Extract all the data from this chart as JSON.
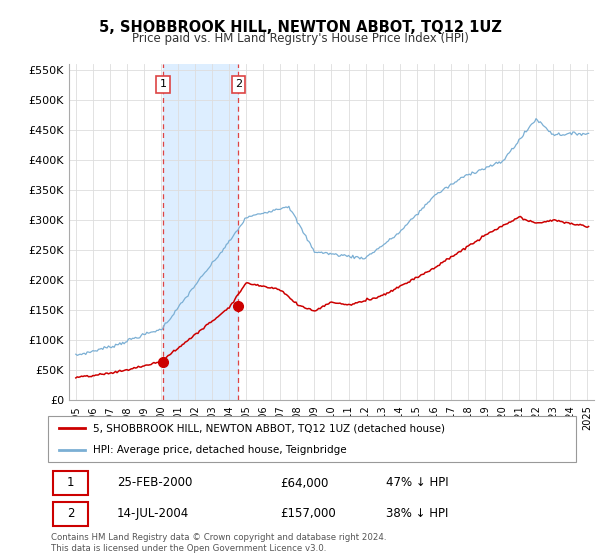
{
  "title": "5, SHOBBROOK HILL, NEWTON ABBOT, TQ12 1UZ",
  "subtitle": "Price paid vs. HM Land Registry's House Price Index (HPI)",
  "legend_line1": "5, SHOBBROOK HILL, NEWTON ABBOT, TQ12 1UZ (detached house)",
  "legend_line2": "HPI: Average price, detached house, Teignbridge",
  "footer": "Contains HM Land Registry data © Crown copyright and database right 2024.\nThis data is licensed under the Open Government Licence v3.0.",
  "sale1_date": "25-FEB-2000",
  "sale1_price": "£64,000",
  "sale1_hpi": "47% ↓ HPI",
  "sale2_date": "14-JUL-2004",
  "sale2_price": "£157,000",
  "sale2_hpi": "38% ↓ HPI",
  "red_color": "#cc0000",
  "blue_color": "#7bafd4",
  "shade_color": "#ddeeff",
  "dashed_color": "#dd4444",
  "ylim": [
    0,
    560000
  ],
  "yticks": [
    0,
    50000,
    100000,
    150000,
    200000,
    250000,
    300000,
    350000,
    400000,
    450000,
    500000,
    550000
  ],
  "ylabels": [
    "£0",
    "£50K",
    "£100K",
    "£150K",
    "£200K",
    "£250K",
    "£300K",
    "£350K",
    "£400K",
    "£450K",
    "£500K",
    "£550K"
  ],
  "sale1_year": 2000.12,
  "sale1_value": 64000,
  "sale2_year": 2004.54,
  "sale2_value": 157000,
  "xmin": 1994.6,
  "xmax": 2025.4
}
